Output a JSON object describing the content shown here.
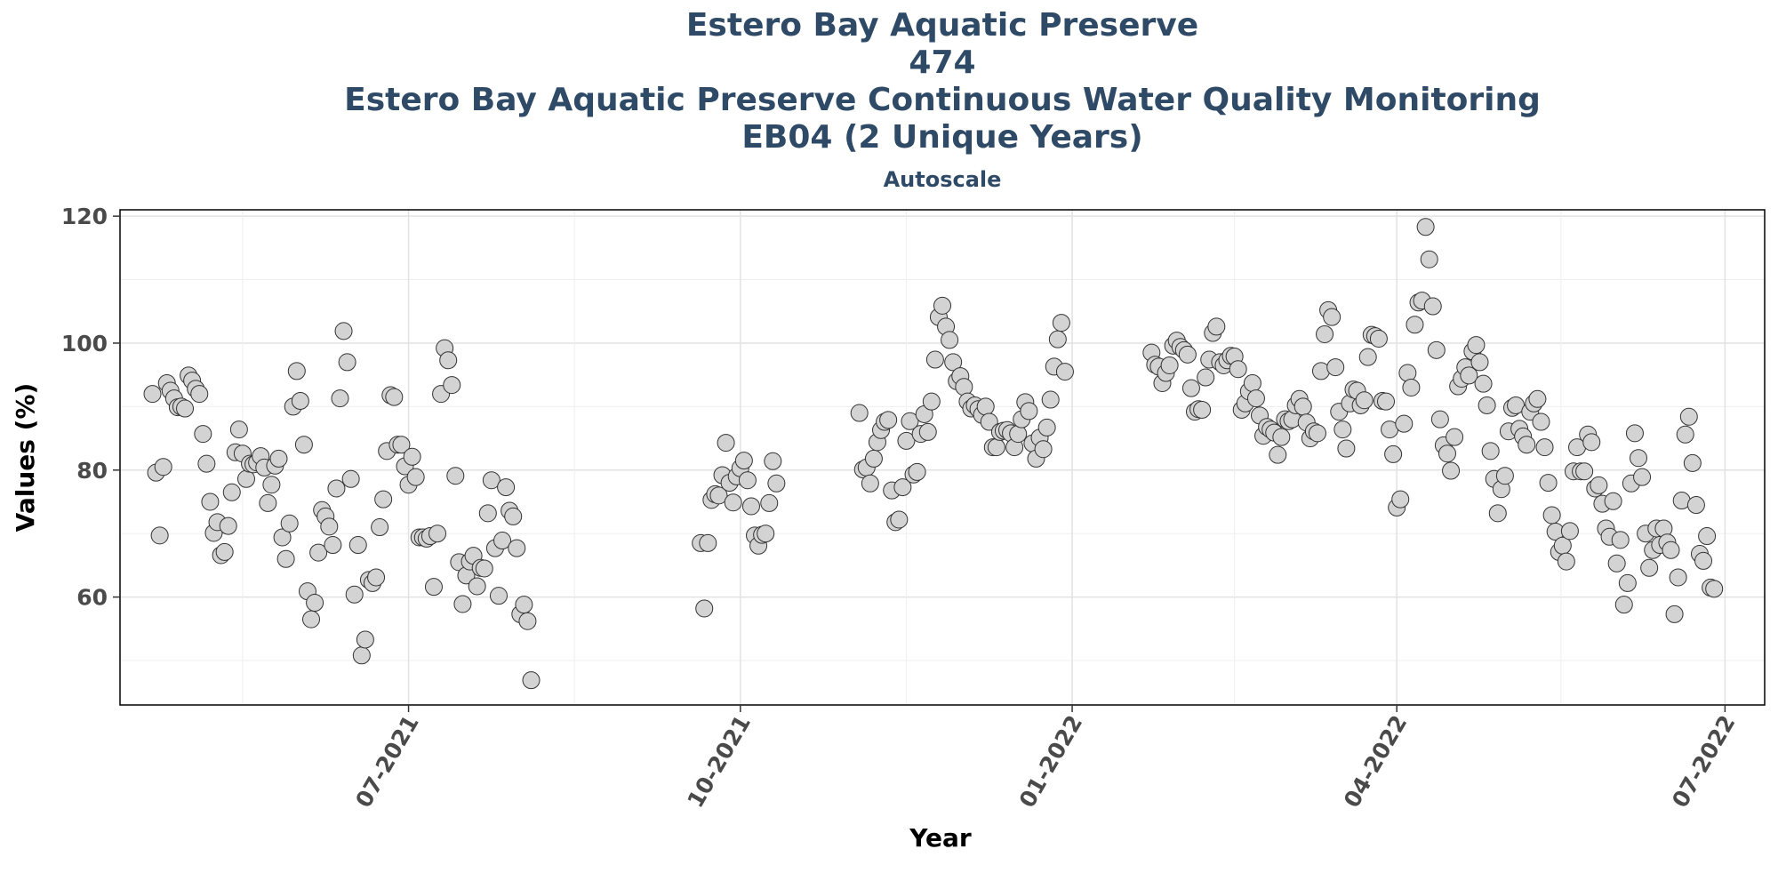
{
  "chart_data": {
    "type": "scatter",
    "title_lines": [
      "Estero Bay Aquatic Preserve",
      "474",
      "Estero Bay Aquatic Preserve Continuous Water Quality Monitoring",
      "EB04 (2 Unique Years)"
    ],
    "subtitle": "Autoscale",
    "xlabel": "Year",
    "ylabel": "Values (%)",
    "ylim": [
      43,
      121
    ],
    "xlim": [
      "2021-04-12",
      "2022-07-12"
    ],
    "y_ticks": [
      60,
      80,
      100,
      120
    ],
    "x_ticks": [
      {
        "date": "2021-07-01",
        "label": "07-2021"
      },
      {
        "date": "2021-10-01",
        "label": "10-2021"
      },
      {
        "date": "2022-01-01",
        "label": "01-2022"
      },
      {
        "date": "2022-04-01",
        "label": "04-2022"
      },
      {
        "date": "2022-07-01",
        "label": "07-2022"
      }
    ],
    "grid": true,
    "point_fill": "#d3d3d3",
    "point_stroke": "#333333",
    "points": [
      [
        "2021-04-21",
        92
      ],
      [
        "2021-04-22",
        79.6
      ],
      [
        "2021-04-23",
        69.7
      ],
      [
        "2021-04-24",
        80.5
      ],
      [
        "2021-04-25",
        93.7
      ],
      [
        "2021-04-26",
        92.5
      ],
      [
        "2021-04-27",
        91.3
      ],
      [
        "2021-04-28",
        89.9
      ],
      [
        "2021-04-29",
        90
      ],
      [
        "2021-04-30",
        89.7
      ],
      [
        "2021-05-01",
        94.9
      ],
      [
        "2021-05-02",
        94.1
      ],
      [
        "2021-05-03",
        92.8
      ],
      [
        "2021-05-04",
        92
      ],
      [
        "2021-05-05",
        85.7
      ],
      [
        "2021-05-06",
        81
      ],
      [
        "2021-05-07",
        75
      ],
      [
        "2021-05-08",
        70.1
      ],
      [
        "2021-05-09",
        71.8
      ],
      [
        "2021-05-10",
        66.6
      ],
      [
        "2021-05-11",
        67.1
      ],
      [
        "2021-05-12",
        71.2
      ],
      [
        "2021-05-13",
        76.5
      ],
      [
        "2021-05-14",
        82.8
      ],
      [
        "2021-05-15",
        86.4
      ],
      [
        "2021-05-16",
        82.6
      ],
      [
        "2021-05-17",
        78.6
      ],
      [
        "2021-05-18",
        81
      ],
      [
        "2021-05-19",
        80.9
      ],
      [
        "2021-05-20",
        81.2
      ],
      [
        "2021-05-21",
        82.2
      ],
      [
        "2021-05-22",
        80.4
      ],
      [
        "2021-05-23",
        74.8
      ],
      [
        "2021-05-24",
        77.7
      ],
      [
        "2021-05-25",
        80.7
      ],
      [
        "2021-05-26",
        81.8
      ],
      [
        "2021-05-27",
        69.4
      ],
      [
        "2021-05-28",
        66
      ],
      [
        "2021-05-29",
        71.6
      ],
      [
        "2021-05-30",
        90
      ],
      [
        "2021-05-31",
        95.6
      ],
      [
        "2021-06-01",
        90.9
      ],
      [
        "2021-06-02",
        84
      ],
      [
        "2021-06-03",
        60.9
      ],
      [
        "2021-06-04",
        56.5
      ],
      [
        "2021-06-05",
        59.1
      ],
      [
        "2021-06-06",
        67
      ],
      [
        "2021-06-07",
        73.7
      ],
      [
        "2021-06-08",
        72.7
      ],
      [
        "2021-06-09",
        71.1
      ],
      [
        "2021-06-10",
        68.2
      ],
      [
        "2021-06-11",
        77.1
      ],
      [
        "2021-06-12",
        91.3
      ],
      [
        "2021-06-13",
        101.9
      ],
      [
        "2021-06-14",
        97
      ],
      [
        "2021-06-15",
        78.6
      ],
      [
        "2021-06-16",
        60.4
      ],
      [
        "2021-06-17",
        68.2
      ],
      [
        "2021-06-18",
        50.8
      ],
      [
        "2021-06-19",
        53.3
      ],
      [
        "2021-06-20",
        62.7
      ],
      [
        "2021-06-21",
        62.2
      ],
      [
        "2021-06-22",
        63.1
      ],
      [
        "2021-06-23",
        71
      ],
      [
        "2021-06-24",
        75.4
      ],
      [
        "2021-06-25",
        83
      ],
      [
        "2021-06-26",
        91.8
      ],
      [
        "2021-06-27",
        91.5
      ],
      [
        "2021-06-28",
        84
      ],
      [
        "2021-06-29",
        84
      ],
      [
        "2021-06-30",
        80.6
      ],
      [
        "2021-07-01",
        77.7
      ],
      [
        "2021-07-02",
        82.1
      ],
      [
        "2021-07-03",
        78.9
      ],
      [
        "2021-07-04",
        69.4
      ],
      [
        "2021-07-05",
        69.4
      ],
      [
        "2021-07-06",
        69.2
      ],
      [
        "2021-07-07",
        69.6
      ],
      [
        "2021-07-08",
        61.6
      ],
      [
        "2021-07-09",
        70
      ],
      [
        "2021-07-10",
        92
      ],
      [
        "2021-07-11",
        99.2
      ],
      [
        "2021-07-12",
        97.3
      ],
      [
        "2021-07-13",
        93.4
      ],
      [
        "2021-07-14",
        79.1
      ],
      [
        "2021-07-15",
        65.5
      ],
      [
        "2021-07-16",
        58.9
      ],
      [
        "2021-07-17",
        63.4
      ],
      [
        "2021-07-18",
        65.6
      ],
      [
        "2021-07-19",
        66.5
      ],
      [
        "2021-07-20",
        61.7
      ],
      [
        "2021-07-21",
        64.6
      ],
      [
        "2021-07-22",
        64.5
      ],
      [
        "2021-07-23",
        73.2
      ],
      [
        "2021-07-24",
        78.4
      ],
      [
        "2021-07-25",
        67.7
      ],
      [
        "2021-07-26",
        60.2
      ],
      [
        "2021-07-27",
        68.9
      ],
      [
        "2021-07-28",
        77.3
      ],
      [
        "2021-07-29",
        73.6
      ],
      [
        "2021-07-30",
        72.7
      ],
      [
        "2021-07-31",
        67.7
      ],
      [
        "2021-08-01",
        57.3
      ],
      [
        "2021-08-02",
        58.8
      ],
      [
        "2021-08-03",
        56.2
      ],
      [
        "2021-08-04",
        46.9
      ],
      [
        "2021-09-20",
        68.5
      ],
      [
        "2021-09-21",
        58.2
      ],
      [
        "2021-09-22",
        68.5
      ],
      [
        "2021-09-23",
        75.3
      ],
      [
        "2021-09-24",
        76.2
      ],
      [
        "2021-09-25",
        76
      ],
      [
        "2021-09-26",
        79.2
      ],
      [
        "2021-09-27",
        84.3
      ],
      [
        "2021-09-28",
        78
      ],
      [
        "2021-09-29",
        74.9
      ],
      [
        "2021-09-30",
        79
      ],
      [
        "2021-10-01",
        80.3
      ],
      [
        "2021-10-02",
        81.5
      ],
      [
        "2021-10-03",
        78.4
      ],
      [
        "2021-10-04",
        74.3
      ],
      [
        "2021-10-05",
        69.7
      ],
      [
        "2021-10-06",
        68.1
      ],
      [
        "2021-10-07",
        69.8
      ],
      [
        "2021-10-08",
        70
      ],
      [
        "2021-10-09",
        74.8
      ],
      [
        "2021-10-10",
        81.4
      ],
      [
        "2021-10-11",
        77.9
      ],
      [
        "2021-11-03",
        89
      ],
      [
        "2021-11-04",
        80.1
      ],
      [
        "2021-11-05",
        80.4
      ],
      [
        "2021-11-06",
        77.9
      ],
      [
        "2021-11-07",
        81.8
      ],
      [
        "2021-11-08",
        84.4
      ],
      [
        "2021-11-09",
        86.3
      ],
      [
        "2021-11-10",
        87.6
      ],
      [
        "2021-11-11",
        87.9
      ],
      [
        "2021-11-12",
        76.8
      ],
      [
        "2021-11-13",
        71.8
      ],
      [
        "2021-11-14",
        72.2
      ],
      [
        "2021-11-15",
        77.3
      ],
      [
        "2021-11-16",
        84.6
      ],
      [
        "2021-11-17",
        87.7
      ],
      [
        "2021-11-18",
        79.3
      ],
      [
        "2021-11-19",
        79.7
      ],
      [
        "2021-11-20",
        85.7
      ],
      [
        "2021-11-21",
        88.8
      ],
      [
        "2021-11-22",
        86
      ],
      [
        "2021-11-23",
        90.8
      ],
      [
        "2021-11-24",
        97.4
      ],
      [
        "2021-11-25",
        104.1
      ],
      [
        "2021-11-26",
        105.9
      ],
      [
        "2021-11-27",
        102.6
      ],
      [
        "2021-11-28",
        100.5
      ],
      [
        "2021-11-29",
        97
      ],
      [
        "2021-11-30",
        94
      ],
      [
        "2021-12-01",
        94.8
      ],
      [
        "2021-12-02",
        93.1
      ],
      [
        "2021-12-03",
        90.8
      ],
      [
        "2021-12-04",
        89.7
      ],
      [
        "2021-12-05",
        90.2
      ],
      [
        "2021-12-06",
        89.6
      ],
      [
        "2021-12-07",
        88.7
      ],
      [
        "2021-12-08",
        90
      ],
      [
        "2021-12-09",
        87.6
      ],
      [
        "2021-12-10",
        83.6
      ],
      [
        "2021-12-11",
        83.6
      ],
      [
        "2021-12-12",
        86
      ],
      [
        "2021-12-13",
        86.2
      ],
      [
        "2021-12-14",
        86.3
      ],
      [
        "2021-12-15",
        85.8
      ],
      [
        "2021-12-16",
        83.6
      ],
      [
        "2021-12-17",
        85.7
      ],
      [
        "2021-12-18",
        88
      ],
      [
        "2021-12-19",
        90.7
      ],
      [
        "2021-12-20",
        89.3
      ],
      [
        "2021-12-21",
        84.2
      ],
      [
        "2021-12-22",
        81.8
      ],
      [
        "2021-12-23",
        85.1
      ],
      [
        "2021-12-24",
        83.3
      ],
      [
        "2021-12-25",
        86.7
      ],
      [
        "2021-12-26",
        91.1
      ],
      [
        "2021-12-27",
        96.3
      ],
      [
        "2021-12-28",
        100.6
      ],
      [
        "2021-12-29",
        103.2
      ],
      [
        "2021-12-30",
        95.5
      ],
      [
        "2022-01-23",
        98.5
      ],
      [
        "2022-01-24",
        96.6
      ],
      [
        "2022-01-25",
        96.3
      ],
      [
        "2022-01-26",
        93.7
      ],
      [
        "2022-01-27",
        95.3
      ],
      [
        "2022-01-28",
        96.5
      ],
      [
        "2022-01-29",
        99.6
      ],
      [
        "2022-01-30",
        100.4
      ],
      [
        "2022-01-31",
        99.4
      ],
      [
        "2022-02-01",
        98.9
      ],
      [
        "2022-02-02",
        98.2
      ],
      [
        "2022-02-03",
        92.9
      ],
      [
        "2022-02-04",
        89.2
      ],
      [
        "2022-02-05",
        89.6
      ],
      [
        "2022-02-06",
        89.5
      ],
      [
        "2022-02-07",
        94.6
      ],
      [
        "2022-02-08",
        97.4
      ],
      [
        "2022-02-09",
        101.6
      ],
      [
        "2022-02-10",
        102.6
      ],
      [
        "2022-02-11",
        97
      ],
      [
        "2022-02-12",
        96.5
      ],
      [
        "2022-02-13",
        97.3
      ],
      [
        "2022-02-14",
        98
      ],
      [
        "2022-02-15",
        97.9
      ],
      [
        "2022-02-16",
        95.9
      ],
      [
        "2022-02-17",
        89.5
      ],
      [
        "2022-02-18",
        90.5
      ],
      [
        "2022-02-19",
        92.4
      ],
      [
        "2022-02-20",
        93.7
      ],
      [
        "2022-02-21",
        91.3
      ],
      [
        "2022-02-22",
        88.6
      ],
      [
        "2022-02-23",
        85.4
      ],
      [
        "2022-02-24",
        86.8
      ],
      [
        "2022-02-25",
        86.4
      ],
      [
        "2022-02-26",
        85.9
      ],
      [
        "2022-02-27",
        82.4
      ],
      [
        "2022-02-28",
        85.2
      ],
      [
        "2022-03-01",
        88
      ],
      [
        "2022-03-02",
        87.7
      ],
      [
        "2022-03-03",
        88
      ],
      [
        "2022-03-04",
        90.2
      ],
      [
        "2022-03-05",
        91.2
      ],
      [
        "2022-03-06",
        90
      ],
      [
        "2022-03-07",
        87.5
      ],
      [
        "2022-03-08",
        85
      ],
      [
        "2022-03-09",
        86.1
      ],
      [
        "2022-03-10",
        85.8
      ],
      [
        "2022-03-11",
        95.6
      ],
      [
        "2022-03-12",
        101.4
      ],
      [
        "2022-03-13",
        105.2
      ],
      [
        "2022-03-14",
        104.1
      ],
      [
        "2022-03-15",
        96.2
      ],
      [
        "2022-03-16",
        89.2
      ],
      [
        "2022-03-17",
        86.4
      ],
      [
        "2022-03-18",
        83.4
      ],
      [
        "2022-03-19",
        90.5
      ],
      [
        "2022-03-20",
        92.7
      ],
      [
        "2022-03-21",
        92.5
      ],
      [
        "2022-03-22",
        90.2
      ],
      [
        "2022-03-23",
        91
      ],
      [
        "2022-03-24",
        97.8
      ],
      [
        "2022-03-25",
        101.3
      ],
      [
        "2022-03-26",
        101.1
      ],
      [
        "2022-03-27",
        100.7
      ],
      [
        "2022-03-28",
        90.9
      ],
      [
        "2022-03-29",
        90.8
      ],
      [
        "2022-03-30",
        86.4
      ],
      [
        "2022-03-31",
        82.5
      ],
      [
        "2022-04-01",
        74.1
      ],
      [
        "2022-04-02",
        75.4
      ],
      [
        "2022-04-03",
        87.3
      ],
      [
        "2022-04-04",
        95.3
      ],
      [
        "2022-04-05",
        93
      ],
      [
        "2022-04-06",
        102.9
      ],
      [
        "2022-04-07",
        106.4
      ],
      [
        "2022-04-08",
        106.7
      ],
      [
        "2022-04-09",
        118.3
      ],
      [
        "2022-04-10",
        113.2
      ],
      [
        "2022-04-11",
        105.8
      ],
      [
        "2022-04-12",
        98.9
      ],
      [
        "2022-04-13",
        88
      ],
      [
        "2022-04-14",
        83.9
      ],
      [
        "2022-04-15",
        82.6
      ],
      [
        "2022-04-16",
        79.9
      ],
      [
        "2022-04-17",
        85.2
      ],
      [
        "2022-04-18",
        93.2
      ],
      [
        "2022-04-19",
        94.4
      ],
      [
        "2022-04-20",
        96.2
      ],
      [
        "2022-04-21",
        94.9
      ],
      [
        "2022-04-22",
        98.7
      ],
      [
        "2022-04-23",
        99.7
      ],
      [
        "2022-04-24",
        97
      ],
      [
        "2022-04-25",
        93.6
      ],
      [
        "2022-04-26",
        90.2
      ],
      [
        "2022-04-27",
        83
      ],
      [
        "2022-04-28",
        78.6
      ],
      [
        "2022-04-29",
        73.2
      ],
      [
        "2022-04-30",
        77
      ],
      [
        "2022-05-01",
        79.1
      ],
      [
        "2022-05-02",
        86.1
      ],
      [
        "2022-05-03",
        89.8
      ],
      [
        "2022-05-04",
        90.2
      ],
      [
        "2022-05-05",
        86.5
      ],
      [
        "2022-05-06",
        85.3
      ],
      [
        "2022-05-07",
        84
      ],
      [
        "2022-05-08",
        89.2
      ],
      [
        "2022-05-09",
        90.5
      ],
      [
        "2022-05-10",
        91.2
      ],
      [
        "2022-05-11",
        87.6
      ],
      [
        "2022-05-12",
        83.6
      ],
      [
        "2022-05-13",
        78
      ],
      [
        "2022-05-14",
        72.9
      ],
      [
        "2022-05-15",
        70.3
      ],
      [
        "2022-05-16",
        67.1
      ],
      [
        "2022-05-17",
        68.1
      ],
      [
        "2022-05-18",
        65.6
      ],
      [
        "2022-05-19",
        70.4
      ],
      [
        "2022-05-20",
        79.8
      ],
      [
        "2022-05-21",
        83.6
      ],
      [
        "2022-05-22",
        79.8
      ],
      [
        "2022-05-23",
        79.8
      ],
      [
        "2022-05-24",
        85.6
      ],
      [
        "2022-05-25",
        84.4
      ],
      [
        "2022-05-26",
        77.1
      ],
      [
        "2022-05-27",
        77.6
      ],
      [
        "2022-05-28",
        74.7
      ],
      [
        "2022-05-29",
        70.8
      ],
      [
        "2022-05-30",
        69.5
      ],
      [
        "2022-05-31",
        75.1
      ],
      [
        "2022-06-01",
        65.3
      ],
      [
        "2022-06-02",
        69
      ],
      [
        "2022-06-03",
        58.8
      ],
      [
        "2022-06-04",
        62.2
      ],
      [
        "2022-06-05",
        77.9
      ],
      [
        "2022-06-06",
        85.8
      ],
      [
        "2022-06-07",
        81.9
      ],
      [
        "2022-06-08",
        78.9
      ],
      [
        "2022-06-09",
        70
      ],
      [
        "2022-06-10",
        64.6
      ],
      [
        "2022-06-11",
        67.4
      ],
      [
        "2022-06-12",
        70.8
      ],
      [
        "2022-06-13",
        68.2
      ],
      [
        "2022-06-14",
        70.8
      ],
      [
        "2022-06-15",
        68.6
      ],
      [
        "2022-06-16",
        67.4
      ],
      [
        "2022-06-17",
        57.3
      ],
      [
        "2022-06-18",
        63.1
      ],
      [
        "2022-06-19",
        75.2
      ],
      [
        "2022-06-20",
        85.6
      ],
      [
        "2022-06-21",
        88.4
      ],
      [
        "2022-06-22",
        81.1
      ],
      [
        "2022-06-23",
        74.5
      ],
      [
        "2022-06-24",
        66.8
      ],
      [
        "2022-06-25",
        65.7
      ],
      [
        "2022-06-26",
        69.6
      ],
      [
        "2022-06-27",
        61.5
      ],
      [
        "2022-06-28",
        61.3
      ]
    ]
  }
}
